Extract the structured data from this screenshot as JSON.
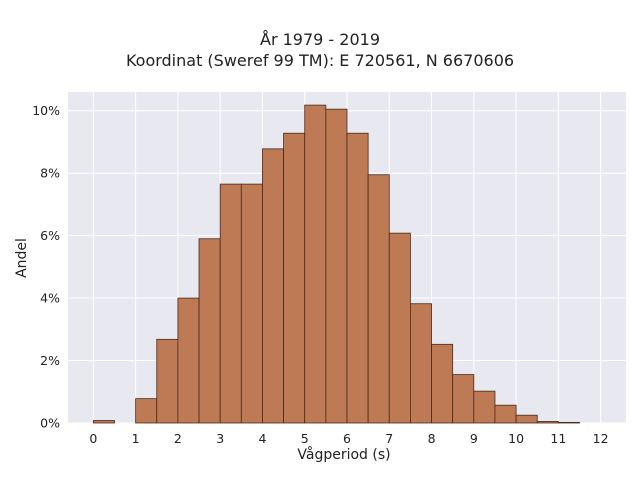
{
  "chart_data": {
    "type": "bar",
    "title_lines": [
      "År 1979 - 2019",
      "Koordinat (Sweref 99 TM): E 720561, N 6670606"
    ],
    "xlabel": "Vågperiod (s)",
    "ylabel": "Andel",
    "xlim": [
      -0.6,
      12.6
    ],
    "ylim": [
      0,
      10.6
    ],
    "x_ticks": [
      "0",
      "1",
      "2",
      "3",
      "4",
      "5",
      "6",
      "7",
      "8",
      "9",
      "10",
      "11",
      "12"
    ],
    "y_ticks": [
      "0%",
      "2%",
      "4%",
      "6%",
      "8%",
      "10%"
    ],
    "bin_width": 0.5,
    "bins": [
      {
        "start": 0.0,
        "value": 0.08
      },
      {
        "start": 0.5,
        "value": 0.0
      },
      {
        "start": 1.0,
        "value": 0.78
      },
      {
        "start": 1.5,
        "value": 2.68
      },
      {
        "start": 2.0,
        "value": 4.0
      },
      {
        "start": 2.5,
        "value": 5.9
      },
      {
        "start": 3.0,
        "value": 7.65
      },
      {
        "start": 3.5,
        "value": 7.65
      },
      {
        "start": 4.0,
        "value": 8.78
      },
      {
        "start": 4.5,
        "value": 9.28
      },
      {
        "start": 5.0,
        "value": 10.18
      },
      {
        "start": 5.5,
        "value": 10.05
      },
      {
        "start": 6.0,
        "value": 9.28
      },
      {
        "start": 6.5,
        "value": 7.95
      },
      {
        "start": 7.0,
        "value": 6.08
      },
      {
        "start": 7.5,
        "value": 3.82
      },
      {
        "start": 8.0,
        "value": 2.52
      },
      {
        "start": 8.5,
        "value": 1.55
      },
      {
        "start": 9.0,
        "value": 1.02
      },
      {
        "start": 9.5,
        "value": 0.57
      },
      {
        "start": 10.0,
        "value": 0.25
      },
      {
        "start": 10.5,
        "value": 0.05
      },
      {
        "start": 11.0,
        "value": 0.02
      }
    ],
    "grid": true,
    "colors": {
      "bar": "#bd7a55",
      "bar_edge": "#4a2a1a",
      "plot_bg": "#e8e8f0",
      "grid": "#ffffff"
    }
  }
}
